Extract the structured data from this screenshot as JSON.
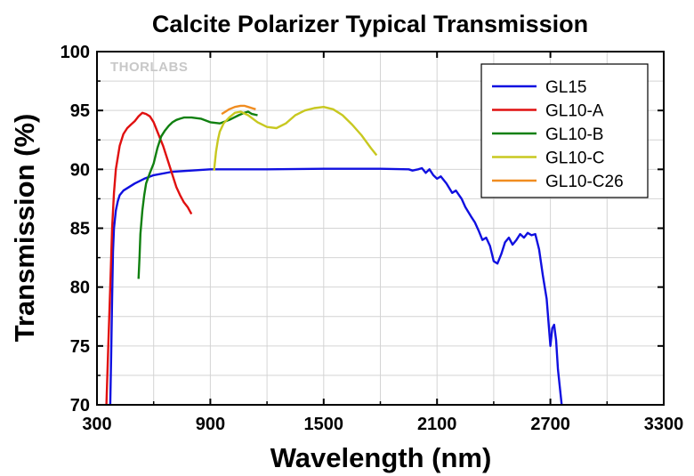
{
  "chart_data": {
    "type": "line",
    "title": "Calcite Polarizer Typical Transmission",
    "xlabel": "Wavelength (nm)",
    "ylabel": "Transmission (%)",
    "xlim": [
      300,
      3300
    ],
    "ylim": [
      70,
      100
    ],
    "xticks": [
      300,
      900,
      1500,
      2100,
      2700,
      3300
    ],
    "yticks": [
      70,
      75,
      80,
      85,
      90,
      95,
      100
    ],
    "grid": true,
    "legend_position": "top-right",
    "watermark": "THORLABS",
    "series": [
      {
        "name": "GL15",
        "color": "#1010e0",
        "x": [
          370,
          375,
          380,
          385,
          390,
          400,
          410,
          420,
          440,
          470,
          500,
          550,
          600,
          700,
          800,
          900,
          1000,
          1200,
          1500,
          1800,
          1950,
          1970,
          2000,
          2020,
          2040,
          2060,
          2080,
          2100,
          2120,
          2150,
          2180,
          2200,
          2230,
          2250,
          2280,
          2300,
          2320,
          2340,
          2360,
          2380,
          2400,
          2420,
          2440,
          2460,
          2480,
          2500,
          2520,
          2540,
          2560,
          2580,
          2600,
          2620,
          2640,
          2660,
          2680,
          2700,
          2710,
          2720,
          2730,
          2740,
          2750,
          2760
        ],
        "y": [
          70,
          74,
          79,
          83,
          85,
          86.5,
          87.3,
          87.8,
          88.2,
          88.5,
          88.8,
          89.2,
          89.5,
          89.8,
          89.9,
          90.0,
          90.0,
          90.0,
          90.05,
          90.05,
          90.0,
          89.9,
          90.0,
          90.1,
          89.7,
          90.0,
          89.5,
          89.2,
          89.4,
          88.8,
          88.0,
          88.2,
          87.5,
          86.8,
          86.0,
          85.5,
          84.8,
          84.0,
          84.2,
          83.5,
          82.2,
          82.0,
          82.8,
          83.8,
          84.2,
          83.6,
          84.0,
          84.5,
          84.2,
          84.6,
          84.4,
          84.5,
          83.2,
          81.0,
          79.0,
          75.0,
          76.5,
          76.8,
          75.5,
          73.0,
          71.5,
          70.0
        ]
      },
      {
        "name": "GL10-A",
        "color": "#e01010",
        "x": [
          350,
          360,
          370,
          380,
          390,
          400,
          420,
          440,
          460,
          480,
          500,
          520,
          540,
          560,
          580,
          600,
          620,
          650,
          680,
          700,
          720,
          740,
          760,
          780,
          800
        ],
        "y": [
          70,
          75,
          80,
          85,
          88,
          90,
          92,
          93,
          93.5,
          93.8,
          94.1,
          94.5,
          94.8,
          94.7,
          94.5,
          94.0,
          93.2,
          92.0,
          90.5,
          89.5,
          88.5,
          87.8,
          87.2,
          86.8,
          86.2
        ]
      },
      {
        "name": "GL10-B",
        "color": "#108010",
        "x": [
          520,
          525,
          530,
          540,
          550,
          560,
          580,
          600,
          620,
          640,
          660,
          680,
          700,
          720,
          740,
          760,
          800,
          850,
          900,
          950,
          1000,
          1050,
          1080,
          1100,
          1120,
          1150
        ],
        "y": [
          80.7,
          82.5,
          84.5,
          86.5,
          87.8,
          88.8,
          89.7,
          90.5,
          91.8,
          92.8,
          93.3,
          93.7,
          94.0,
          94.2,
          94.3,
          94.4,
          94.4,
          94.3,
          94.0,
          93.9,
          94.2,
          94.6,
          94.8,
          94.9,
          94.7,
          94.6
        ]
      },
      {
        "name": "GL10-C",
        "color": "#c8c820",
        "x": [
          920,
          930,
          940,
          950,
          970,
          1000,
          1030,
          1060,
          1100,
          1150,
          1200,
          1250,
          1300,
          1350,
          1400,
          1450,
          1500,
          1550,
          1600,
          1650,
          1700,
          1750,
          1780
        ],
        "y": [
          89.9,
          91.5,
          92.5,
          93.2,
          93.9,
          94.4,
          94.8,
          94.9,
          94.6,
          94.0,
          93.6,
          93.5,
          93.9,
          94.6,
          95.0,
          95.2,
          95.3,
          95.1,
          94.6,
          93.8,
          92.9,
          91.8,
          91.2
        ]
      },
      {
        "name": "GL10-C26",
        "color": "#f08c20",
        "x": [
          960,
          980,
          1000,
          1030,
          1060,
          1080,
          1100,
          1120,
          1140
        ],
        "y": [
          94.7,
          94.9,
          95.1,
          95.3,
          95.4,
          95.4,
          95.3,
          95.2,
          95.1
        ]
      }
    ]
  }
}
